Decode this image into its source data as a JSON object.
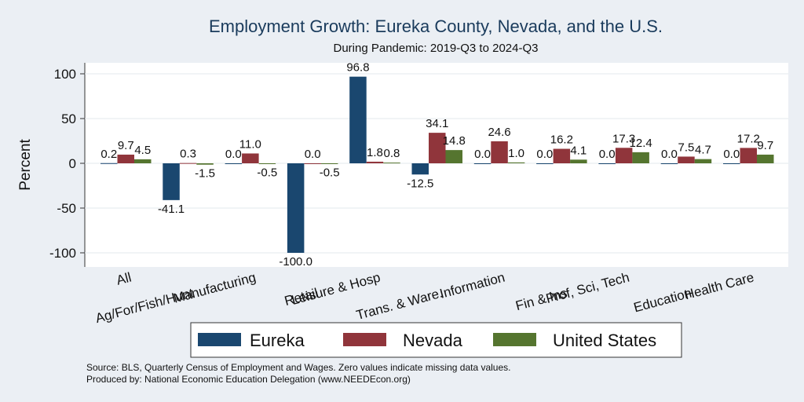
{
  "chart_data": {
    "type": "bar",
    "title": "Employment Growth: Eureka County, Nevada, and the U.S.",
    "subtitle": "During Pandemic: 2019-Q3 to 2024-Q3",
    "ylabel": "Percent",
    "ylim": [
      -110,
      115
    ],
    "yticks": [
      100,
      50,
      0,
      -50,
      -100
    ],
    "categories": [
      "All",
      "Ag/For/Fish/Hunt",
      "Manufacturing",
      "Retail",
      "Leisure & Hosp",
      "Trans. & Ware.",
      "Information",
      "Fin & Ins",
      "Prof, Sci, Tech",
      "Education",
      "Health Care"
    ],
    "series": [
      {
        "name": "Eureka",
        "color": "#1a476f",
        "values": [
          0.2,
          -41.1,
          0.0,
          -100.0,
          96.8,
          -12.5,
          0.0,
          0.0,
          0.0,
          0.0,
          0.0
        ],
        "labels": [
          "0.2",
          "-41.1",
          "0.0",
          "-100.0",
          "96.8",
          "-12.5",
          "0.0",
          "0.0",
          "0.0",
          "0.0",
          "0.0"
        ]
      },
      {
        "name": "Nevada",
        "color": "#90353b",
        "values": [
          9.7,
          0.3,
          11.0,
          0.0,
          1.8,
          34.1,
          24.6,
          16.2,
          17.3,
          7.5,
          17.2
        ],
        "labels": [
          "9.7",
          "0.3",
          "11.0",
          "0.0",
          "1.8",
          "34.1",
          "24.6",
          "16.2",
          "17.3",
          "7.5",
          "17.2"
        ]
      },
      {
        "name": "United States",
        "color": "#55752f",
        "values": [
          4.5,
          -1.5,
          -0.5,
          -0.5,
          0.8,
          14.8,
          1.0,
          4.1,
          12.4,
          4.7,
          9.7
        ],
        "labels": [
          "4.5",
          "-1.5",
          "-0.5",
          "-0.5",
          "0.8",
          "14.8",
          "1.0",
          "4.1",
          "12.4",
          "4.7",
          "9.7"
        ]
      }
    ],
    "legend": "bottom",
    "grid": true
  },
  "notes": {
    "source": "Source: BLS, Quarterly Census of Employment and Wages. Zero values indicate missing data values.",
    "produced": "Produced by: National Economic Education Delegation (www.NEEDEcon.org)"
  }
}
